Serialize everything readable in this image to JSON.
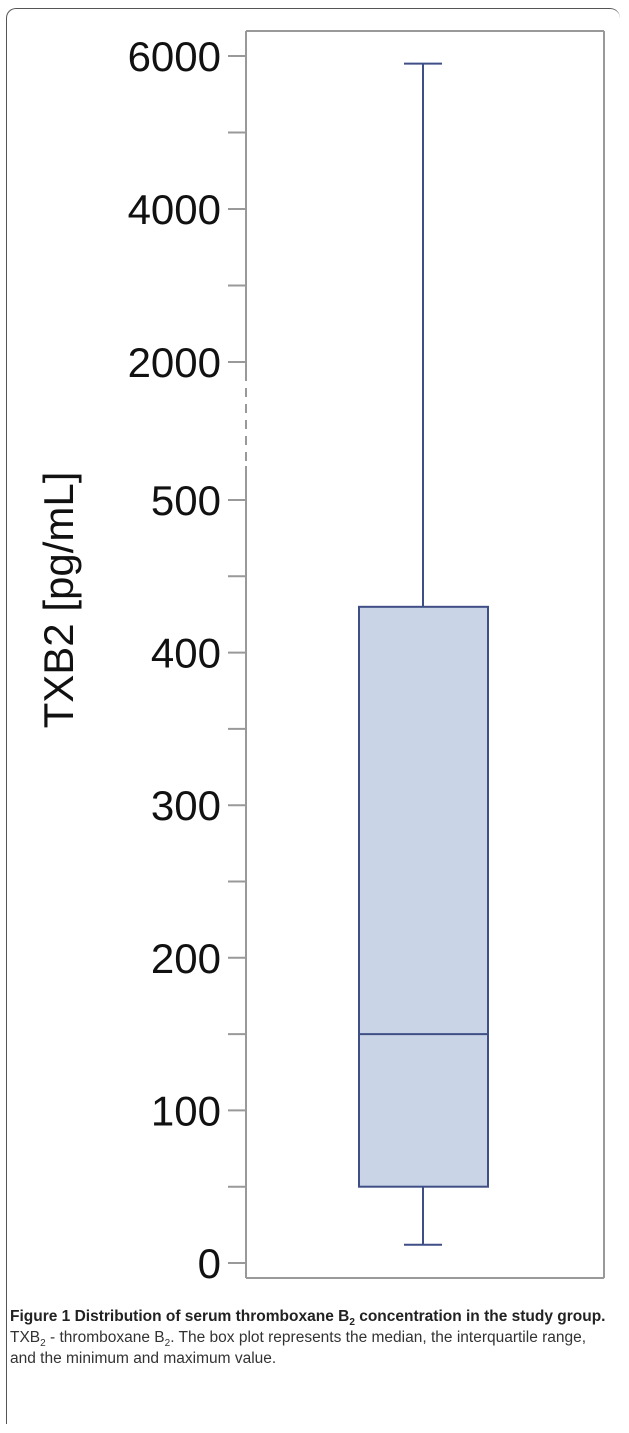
{
  "chart_data": {
    "type": "box",
    "ylabel": "TXB2 [pg/mL]",
    "axis": {
      "broken": true,
      "lower_segment": {
        "range": [
          0,
          500
        ],
        "ticks": [
          "0",
          "100",
          "200",
          "300",
          "400",
          "500"
        ]
      },
      "upper_segment": {
        "range": [
          500,
          6000
        ],
        "ticks": [
          "2000",
          "4000",
          "6000"
        ]
      }
    },
    "box": {
      "min": 12,
      "q1": 50,
      "median": 150,
      "q3": 430,
      "max": 5900
    },
    "colors": {
      "box_fill": "#c9d5e6",
      "box_stroke": "#3f4f86",
      "axis": "#999999",
      "tick_text": "#111111"
    }
  },
  "caption": {
    "label": "Figure 1",
    "title_pre": "Distribution of serum thromboxane B",
    "title_sub": "2",
    "title_post": " concentration in the study group.",
    "abbr": "TXB",
    "abbr_sub": "2",
    "abbr_mid": " - thromboxane B",
    "abbr_sub2": "2",
    "description": ". The box plot represents the median, the interquartile range, and the minimum and maximum value."
  }
}
